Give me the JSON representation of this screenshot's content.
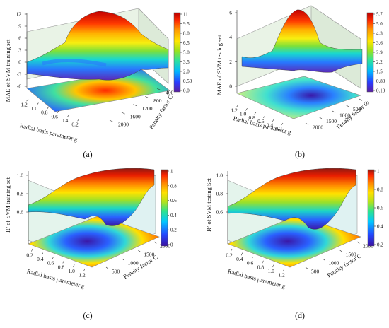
{
  "figure": {
    "captions": [
      "(a)",
      "(b)",
      "(c)",
      "(d)"
    ]
  },
  "chart_data": [
    {
      "type": "surface3d",
      "caption": "(a)",
      "zlabel": "MAE of SVM training set",
      "xlabel": "Radial basis parameter g",
      "ylabel": "Penalty factor C",
      "z_ticks": [
        "-6",
        "-3",
        "0",
        "3",
        "6",
        "9",
        "12"
      ],
      "g_ticks": [
        "1.2",
        "1.0",
        "0.8",
        "0.6",
        "0.4",
        "0.2"
      ],
      "c_ticks": [
        "400",
        "800",
        "1200",
        "1600",
        "2000"
      ],
      "zlim": [
        -6,
        12
      ],
      "colorbar": {
        "min": 0,
        "max": 11,
        "ticks": [
          "11",
          "9.5",
          "8.0",
          "6.5",
          "5.0",
          "3.5",
          "2.0",
          "0.50",
          "0.0"
        ]
      },
      "peak": {
        "g": 0.3,
        "C": 600,
        "value": 11
      }
    },
    {
      "type": "surface3d",
      "caption": "(b)",
      "zlabel": "MAE of SVM testing set",
      "xlabel": "Radial basis parameter g",
      "ylabel": "Penalty factor C",
      "z_ticks": [
        "0",
        "2",
        "4",
        "6"
      ],
      "g_ticks": [
        "1.2",
        "1.0",
        "0.8",
        "0.6",
        "0.4",
        "0.2"
      ],
      "c_ticks": [
        "0",
        "500",
        "1000",
        "1500",
        "2000"
      ],
      "zlim": [
        0,
        6
      ],
      "colorbar": {
        "min": 0,
        "max": 5.7,
        "ticks": [
          "5.7",
          "5.0",
          "4.3",
          "3.6",
          "2.9",
          "2.2",
          "1.5",
          "0.80",
          "0.10"
        ]
      },
      "peak": {
        "g": 0.2,
        "C": 1500,
        "value": 5.7
      }
    },
    {
      "type": "surface3d",
      "caption": "(c)",
      "zlabel": "R² of SVM training set",
      "xlabel": "Radial basis parameter g",
      "ylabel": "Penalty factor C",
      "z_ticks": [
        "0.6",
        "0.8",
        "1.0"
      ],
      "g_ticks": [
        "0.2",
        "0.4",
        "0.6",
        "0.8",
        "1.0",
        "1.2"
      ],
      "c_ticks": [
        "500",
        "1000",
        "1500",
        "2000"
      ],
      "zlim": [
        0.5,
        1.0
      ],
      "colorbar": {
        "min": 0,
        "max": 1,
        "ticks": [
          "1",
          "0.8",
          "0.6",
          "0.4",
          "0.2",
          "0"
        ]
      },
      "trough": {
        "g": 1.0,
        "C": 300,
        "value": 0
      }
    },
    {
      "type": "surface3d",
      "caption": "(d)",
      "zlabel": "R² of SVM testing Set",
      "xlabel": "Radial basis parameter g",
      "ylabel": "Penalty factor C",
      "z_ticks": [
        "0.6",
        "0.8",
        "1.0"
      ],
      "g_ticks": [
        "0.2",
        "0.4",
        "0.6",
        "0.8",
        "1.0",
        "1.2"
      ],
      "c_ticks": [
        "500",
        "1000",
        "1500",
        "2000"
      ],
      "zlim": [
        0.5,
        1.0
      ],
      "colorbar": {
        "min": 0.2,
        "max": 1,
        "ticks": [
          "1",
          "0.8",
          "0.6",
          "0.4",
          "0.2"
        ]
      },
      "trough": {
        "g": 1.0,
        "C": 300,
        "value": 0.2
      }
    }
  ]
}
